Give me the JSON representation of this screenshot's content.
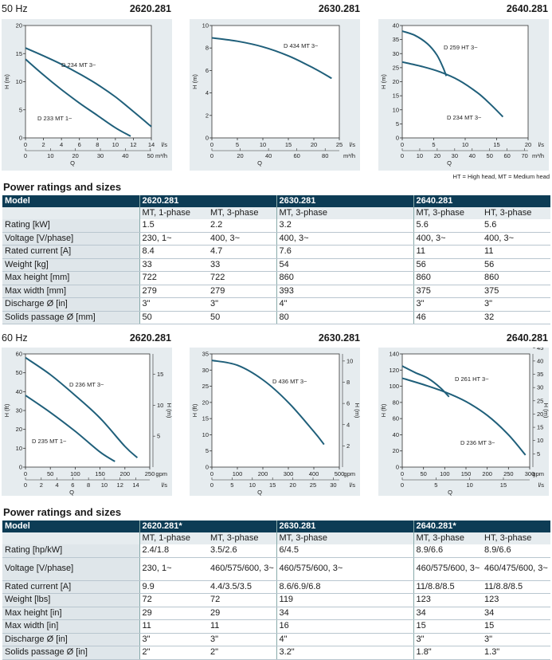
{
  "section50": {
    "freq": "50 Hz",
    "models": [
      "2620.281",
      "2630.281",
      "2640.281"
    ],
    "note": "HT = High head, MT = Medium head"
  },
  "section60": {
    "freq": "60 Hz",
    "models": [
      "2620.281",
      "2630.281",
      "2640.281"
    ]
  },
  "colors": {
    "curve": "#1f5f7a",
    "header": "#0d3c55",
    "panel": "#e6ecef"
  },
  "chart_data": [
    {
      "type": "line",
      "title": "2620.281",
      "ylabel": "H (m)",
      "xlabel": "Q",
      "xunit": "l/s",
      "xunit2": "m³/h",
      "xlim": [
        0,
        14
      ],
      "ylim": [
        0,
        20
      ],
      "xticks": [
        0,
        2,
        4,
        6,
        8,
        10,
        12,
        14
      ],
      "yticks": [
        0,
        5,
        10,
        15,
        20
      ],
      "x2ticks": [
        0,
        10,
        20,
        30,
        40,
        50
      ],
      "series": [
        {
          "name": "D 234 MT 3~",
          "x": [
            0,
            2,
            4,
            6,
            8,
            10,
            12,
            14
          ],
          "y": [
            16,
            14.6,
            13.1,
            11.4,
            9.5,
            7.3,
            4.7,
            2
          ]
        },
        {
          "name": "D 233 MT 1~",
          "x": [
            0,
            2,
            4,
            6,
            8,
            10,
            11.7
          ],
          "y": [
            14,
            11.2,
            8.6,
            6.2,
            4,
            1.8,
            0.3
          ]
        }
      ]
    },
    {
      "type": "line",
      "title": "2630.281",
      "ylabel": "H (m)",
      "xlabel": "Q",
      "xunit": "l/s",
      "xunit2": "m³/h",
      "xlim": [
        0,
        25
      ],
      "ylim": [
        0,
        10
      ],
      "xticks": [
        0,
        5,
        10,
        15,
        20,
        25
      ],
      "yticks": [
        0,
        2,
        4,
        6,
        8,
        10
      ],
      "x2ticks": [
        0,
        20,
        40,
        60,
        80
      ],
      "series": [
        {
          "name": "D 434 MT 3~",
          "x": [
            0,
            5,
            10,
            15,
            20,
            23.5
          ],
          "y": [
            8.9,
            8.6,
            8.1,
            7.3,
            6.2,
            5.3
          ]
        }
      ]
    },
    {
      "type": "line",
      "title": "2640.281",
      "ylabel": "H (m)",
      "xlabel": "Q",
      "xunit": "l/s",
      "xunit2": "m³/h",
      "xlim": [
        0,
        20
      ],
      "ylim": [
        0,
        40
      ],
      "xticks": [
        0,
        5,
        10,
        15,
        20
      ],
      "yticks": [
        0,
        5,
        10,
        15,
        20,
        25,
        30,
        35,
        40
      ],
      "x2ticks": [
        0,
        10,
        20,
        30,
        40,
        50,
        60,
        70
      ],
      "series": [
        {
          "name": "D 259 HT 3~",
          "x": [
            0,
            2,
            4,
            5.5,
            6.5,
            7
          ],
          "y": [
            38,
            36.5,
            33.5,
            29.5,
            25,
            22
          ]
        },
        {
          "name": "D 234 MT 3~",
          "x": [
            0,
            3,
            6,
            9,
            12,
            14,
            16
          ],
          "y": [
            27,
            25.5,
            23.5,
            20.5,
            16,
            12,
            7.5
          ]
        }
      ]
    },
    {
      "type": "line",
      "title": "2620.281",
      "ylabel": "H (ft)",
      "ylabel2": "H (m)",
      "xlabel": "Q",
      "xunit": "gpm",
      "xunit2": "l/s",
      "xlim": [
        0,
        250
      ],
      "ylim": [
        0,
        60
      ],
      "xticks": [
        0,
        50,
        100,
        150,
        200,
        250
      ],
      "yticks": [
        0,
        10,
        20,
        30,
        40,
        50,
        60
      ],
      "y2ticks": [
        5,
        10,
        15
      ],
      "x2ticks": [
        0,
        2,
        4,
        6,
        8,
        10,
        12,
        14
      ],
      "series": [
        {
          "name": "D 236 MT 3~",
          "x": [
            0,
            50,
            100,
            150,
            200,
            225
          ],
          "y": [
            58,
            49,
            38,
            26,
            11,
            5
          ]
        },
        {
          "name": "D 235 MT 1~",
          "x": [
            0,
            50,
            100,
            150,
            180
          ],
          "y": [
            38,
            29,
            19,
            8,
            3
          ]
        }
      ]
    },
    {
      "type": "line",
      "title": "2630.281",
      "ylabel": "H (ft)",
      "ylabel2": "H (m)",
      "xlabel": "Q",
      "xunit": "gpm",
      "xunit2": "l/s",
      "xlim": [
        0,
        500
      ],
      "ylim": [
        0,
        35
      ],
      "xticks": [
        0,
        100,
        200,
        300,
        400,
        500
      ],
      "yticks": [
        0,
        5,
        10,
        15,
        20,
        25,
        30,
        35
      ],
      "y2ticks": [
        2,
        4,
        6,
        8,
        10
      ],
      "x2ticks": [
        0,
        5,
        10,
        15,
        20,
        25,
        30
      ],
      "series": [
        {
          "name": "D 436 MT 3~",
          "x": [
            0,
            100,
            200,
            300,
            400,
            440
          ],
          "y": [
            33,
            31.5,
            27,
            20,
            11,
            7
          ]
        }
      ]
    },
    {
      "type": "line",
      "title": "2640.281",
      "ylabel": "H (ft)",
      "ylabel2": "H (m)",
      "xlabel": "Q",
      "xunit": "gpm",
      "xunit2": "l/s",
      "xlim": [
        0,
        300
      ],
      "ylim": [
        0,
        140
      ],
      "xticks": [
        0,
        50,
        100,
        150,
        200,
        250,
        300
      ],
      "yticks": [
        0,
        20,
        40,
        60,
        80,
        100,
        120,
        140
      ],
      "y2ticks": [
        5,
        10,
        15,
        20,
        25,
        30,
        35,
        40,
        45
      ],
      "x2ticks": [
        0,
        5,
        10,
        15,
        20
      ],
      "series": [
        {
          "name": "D 261 HT 3~",
          "x": [
            0,
            30,
            60,
            90,
            110
          ],
          "y": [
            125,
            117,
            110,
            98,
            87
          ]
        },
        {
          "name": "D 236 MT 3~",
          "x": [
            0,
            50,
            100,
            150,
            200,
            250,
            290
          ],
          "y": [
            110,
            102,
            93,
            81,
            64,
            40,
            15
          ]
        }
      ]
    }
  ],
  "table50": {
    "title": "Power ratings and sizes",
    "header": [
      "Model",
      "2620.281",
      "",
      "2630.281",
      "2640.281",
      ""
    ],
    "sub": [
      "",
      "MT, 1-phase",
      "MT, 3-phase",
      "MT, 3-phase",
      "MT, 3-phase",
      "HT, 3-phase"
    ],
    "rows": [
      [
        "Rating [kW]",
        "1.5",
        "2.2",
        "3.2",
        "5.6",
        "5.6"
      ],
      [
        "Voltage [V/phase]",
        "230, 1~",
        "400, 3~",
        "400, 3~",
        "400, 3~",
        "400, 3~"
      ],
      [
        "Rated current [A]",
        "8.4",
        "4.7",
        "7.6",
        "11",
        "11"
      ],
      [
        "Weight [kg]",
        "33",
        "33",
        "54",
        "56",
        "56"
      ],
      [
        "Max height [mm]",
        "722",
        "722",
        "860",
        "860",
        "860"
      ],
      [
        "Max width [mm]",
        "279",
        "279",
        "393",
        "375",
        "375"
      ],
      [
        "Discharge Ø [in]",
        "3\"",
        "3\"",
        "4\"",
        "3\"",
        "3\""
      ],
      [
        "Solids passage Ø [mm]",
        "50",
        "50",
        "80",
        "46",
        "32"
      ]
    ]
  },
  "table60": {
    "title": "Power ratings and sizes",
    "header": [
      "Model",
      "2620.281*",
      "",
      "2630.281",
      "2640.281*",
      ""
    ],
    "sub": [
      "",
      "MT, 1-phase",
      "MT, 3-phase",
      "MT, 3-phase",
      "MT, 3-phase",
      "HT, 3-phase"
    ],
    "rows": [
      [
        "Rating [hp/kW]",
        "2.4/1.8",
        "3.5/2.6",
        "6/4.5",
        "8.9/6.6",
        "8.9/6.6"
      ],
      [
        "Voltage [V/phase]",
        "230, 1~",
        "460/575/600, 3~",
        "460/575/600, 3~",
        "460/575/600, 3~",
        "460/475/600, 3~"
      ],
      [
        "Rated current [A]",
        "9.9",
        "4.4/3.5/3.5",
        "8.6/6.9/6.8",
        "11/8.8/8.5",
        "11/8.8/8.5"
      ],
      [
        "Weight [lbs]",
        "72",
        "72",
        "119",
        "123",
        "123"
      ],
      [
        "Max height [in]",
        "29",
        "29",
        "34",
        "34",
        "34"
      ],
      [
        "Max width [in]",
        "11",
        "11",
        "16",
        "15",
        "15"
      ],
      [
        "Discharge Ø [in]",
        "3\"",
        "3\"",
        "4\"",
        "3\"",
        "3\""
      ],
      [
        "Solids passage Ø [in]",
        "2\"",
        "2\"",
        "3.2\"",
        "1.8\"",
        "1.3\""
      ]
    ]
  }
}
